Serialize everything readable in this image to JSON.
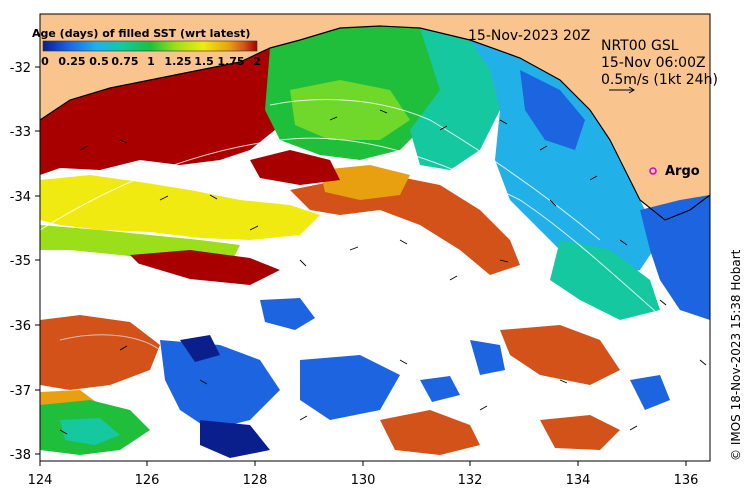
{
  "title": "15-Nov-2023 20Z",
  "colorbar": {
    "title": "Age (days) of filled SST (wrt latest)",
    "ticks": [
      "0",
      "0.25",
      "0.5",
      "0.75",
      "1",
      "1.25",
      "1.5",
      "1.75",
      "2"
    ],
    "colors": [
      "#0a1f8c",
      "#1c64e0",
      "#22b0e8",
      "#16c8a0",
      "#1fbf3c",
      "#9adf1a",
      "#f0ea10",
      "#e8a010",
      "#d2521a",
      "#a80000"
    ]
  },
  "product": {
    "line1": "NRT00 GSL",
    "line2": "15-Nov 06:00Z",
    "line3": "0.5m/s (1kt 24h)"
  },
  "marker": {
    "label": "Argo",
    "color": "#d000d0"
  },
  "credit": "© IMOS 18-Nov-2023 15:38 Hobart",
  "axes": {
    "x_ticks": [
      "124",
      "126",
      "128",
      "130",
      "132",
      "134",
      "136"
    ],
    "y_ticks": [
      "-32",
      "-33",
      "-34",
      "-35",
      "-36",
      "-37",
      "-38"
    ]
  },
  "colors": {
    "land": "#f9c48e",
    "no_data": "#ffffff"
  }
}
